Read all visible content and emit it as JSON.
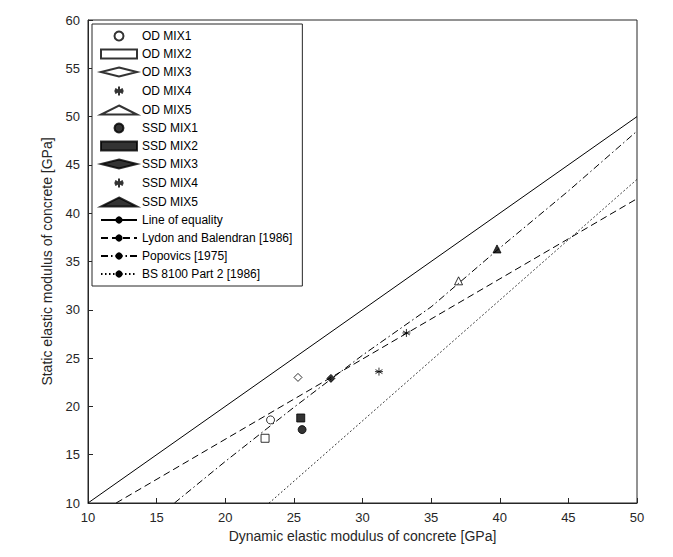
{
  "chart_data": {
    "type": "scatter",
    "x_label": "Dynamic elastic modulus of concrete [GPa]",
    "y_label": "Static elastic modulus of concrete [GPa]",
    "xlim": [
      10,
      50
    ],
    "xticks": [
      10,
      15,
      20,
      25,
      30,
      35,
      40,
      45,
      50
    ],
    "ylim": [
      10,
      60
    ],
    "yticks": [
      10,
      15,
      20,
      25,
      30,
      35,
      40,
      45,
      50,
      55,
      60
    ],
    "grid": false,
    "legend": "upper left",
    "series": [
      {
        "name": "OD MIX1",
        "type": "scatter",
        "marker": "circle_open",
        "color": "#000000",
        "x": [
          23.3
        ],
        "values": [
          18.6
        ]
      },
      {
        "name": "OD MIX2",
        "type": "scatter",
        "marker": "square_open",
        "color": "#000000",
        "x": [
          22.9
        ],
        "values": [
          16.7
        ]
      },
      {
        "name": "OD MIX3",
        "type": "scatter",
        "marker": "diamond_open",
        "color": "#000000",
        "x": [
          25.3
        ],
        "values": [
          23.0
        ]
      },
      {
        "name": "OD MIX4",
        "type": "scatter",
        "marker": "asterisk",
        "color": "#000000",
        "x": [
          31.2
        ],
        "values": [
          23.6
        ]
      },
      {
        "name": "OD MIX5",
        "type": "scatter",
        "marker": "triangle_open",
        "color": "#000000",
        "x": [
          37.0
        ],
        "values": [
          33.0
        ]
      },
      {
        "name": "SSD MIX1",
        "type": "scatter",
        "marker": "circle",
        "color": "#000000",
        "x": [
          25.6
        ],
        "values": [
          17.6
        ]
      },
      {
        "name": "SSD MIX2",
        "type": "scatter",
        "marker": "square",
        "color": "#000000",
        "x": [
          25.5
        ],
        "values": [
          18.8
        ]
      },
      {
        "name": "SSD MIX3",
        "type": "scatter",
        "marker": "diamond",
        "color": "#000000",
        "x": [
          27.7
        ],
        "values": [
          22.9
        ]
      },
      {
        "name": "SSD MIX4",
        "type": "scatter",
        "marker": "asterisk",
        "color": "#000000",
        "x": [
          33.2
        ],
        "values": [
          27.6
        ]
      },
      {
        "name": "SSD MIX5",
        "type": "scatter",
        "marker": "triangle",
        "color": "#000000",
        "x": [
          39.8
        ],
        "values": [
          36.3
        ]
      },
      {
        "name": "Line of equality",
        "type": "line",
        "line_style": "solid",
        "color": "#000000",
        "x": [
          10,
          50
        ],
        "values": [
          10,
          50
        ]
      },
      {
        "name": "Lydon and Balendran [1986]",
        "type": "line",
        "line_style": "dashed",
        "color": "#000000",
        "x": [
          12.05,
          50
        ],
        "values": [
          10,
          41.5
        ]
      },
      {
        "name": "Popovics [1975]",
        "type": "line",
        "line_style": "dashdot",
        "color": "#000000",
        "x": [
          16.3,
          20,
          25,
          30,
          35,
          40,
          45,
          50
        ],
        "values": [
          10,
          14.3,
          19.9,
          25.3,
          30.3,
          36.4,
          42.3,
          48.5
        ]
      },
      {
        "name": "BS 8100 Part 2 [1986]",
        "type": "line",
        "line_style": "dotted",
        "color": "#000000",
        "x": [
          23.2,
          50
        ],
        "values": [
          10,
          43.5
        ]
      }
    ]
  }
}
